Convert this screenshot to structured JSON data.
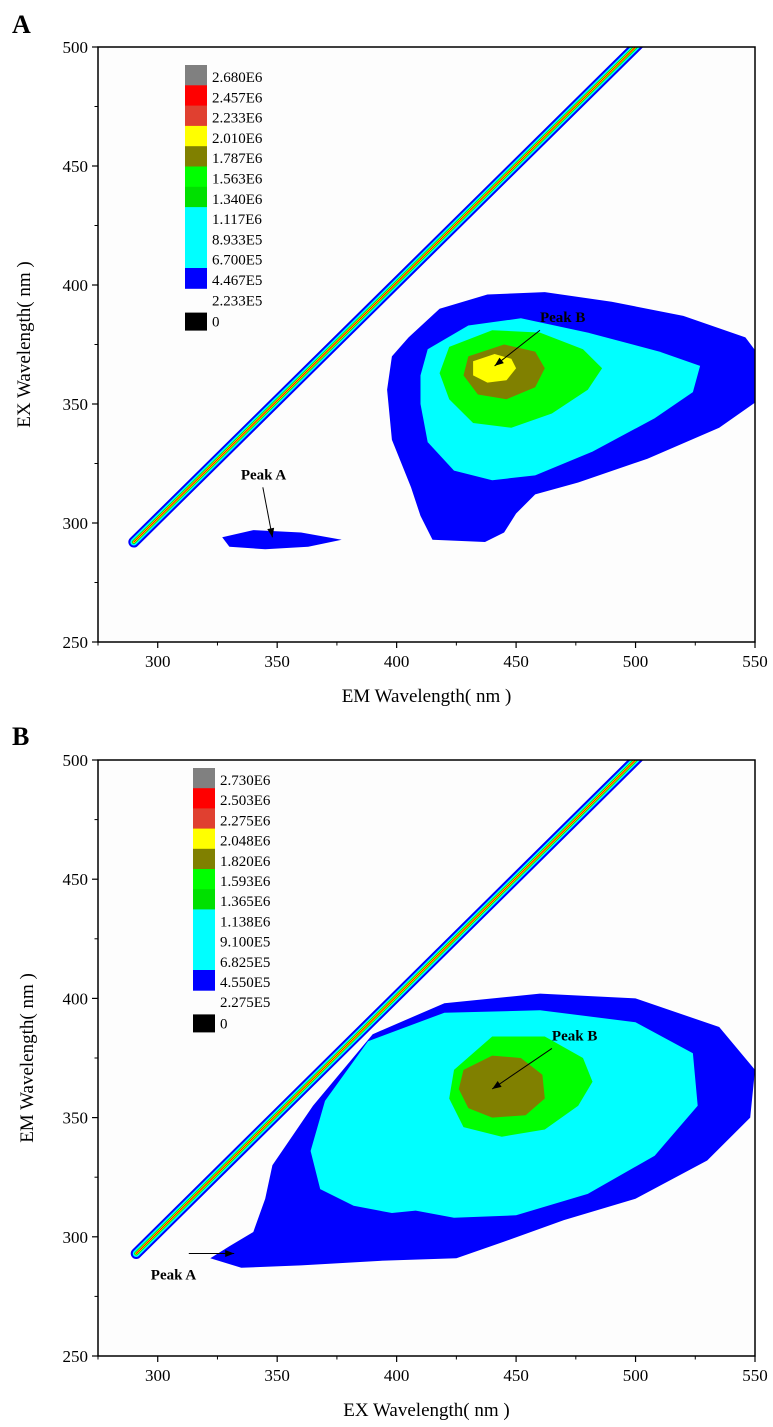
{
  "chart_data": [
    {
      "type": "contour",
      "panel_label": "A",
      "xlabel": "EM Wavelength( nm )",
      "ylabel": "EX Wavelength( nm )",
      "xlim": [
        275,
        550
      ],
      "ylim": [
        250,
        500
      ],
      "xticks": [
        "300",
        "350",
        "400",
        "450",
        "500",
        "550"
      ],
      "yticks": [
        "250",
        "300",
        "350",
        "400",
        "450",
        "500"
      ],
      "legend": {
        "placement": "top-left",
        "levels": [
          "2.680E6",
          "2.457E6",
          "2.233E6",
          "2.010E6",
          "1.787E6",
          "1.563E6",
          "1.340E6",
          "1.117E6",
          "8.933E5",
          "6.700E5",
          "4.467E5",
          "2.233E5",
          "0"
        ],
        "colors": [
          "#808080",
          "#ff0000",
          "#e04030",
          "#ffff00",
          "#808000",
          "#00ff00",
          "#00e000",
          "#00ffff",
          "#00ffff",
          "#00ffff",
          "#0000ff",
          "#0000ff",
          "#000000"
        ]
      },
      "scatter_line": {
        "start": [
          290,
          292
        ],
        "end": [
          502,
          502
        ]
      },
      "peaks": [
        {
          "label": "Peak A",
          "em": 348,
          "ex": 293
        },
        {
          "label": "Peak B",
          "em": 440,
          "ex": 365
        }
      ]
    },
    {
      "type": "contour",
      "panel_label": "B",
      "xlabel": "EX Wavelength( nm )",
      "ylabel": "EM Wavelength( nm )",
      "xlim": [
        275,
        550
      ],
      "ylim": [
        250,
        500
      ],
      "xticks": [
        "300",
        "350",
        "400",
        "450",
        "500",
        "550"
      ],
      "yticks": [
        "250",
        "300",
        "350",
        "400",
        "450",
        "500"
      ],
      "legend": {
        "placement": "top-left",
        "levels": [
          "2.730E6",
          "2.503E6",
          "2.275E6",
          "2.048E6",
          "1.820E6",
          "1.593E6",
          "1.365E6",
          "1.138E6",
          "9.100E5",
          "6.825E5",
          "4.550E5",
          "2.275E5",
          "0"
        ],
        "colors": [
          "#808080",
          "#ff0000",
          "#e04030",
          "#ffff00",
          "#808000",
          "#00ff00",
          "#00e000",
          "#00ffff",
          "#00ffff",
          "#00ffff",
          "#0000ff",
          "#0000ff",
          "#000000"
        ]
      },
      "scatter_line": {
        "start": [
          291,
          293
        ],
        "end": [
          502,
          502
        ]
      },
      "peaks": [
        {
          "label": "Peak A",
          "em": 332,
          "ex": 292
        },
        {
          "label": "Peak B",
          "em": 440,
          "ex": 362
        }
      ]
    }
  ]
}
